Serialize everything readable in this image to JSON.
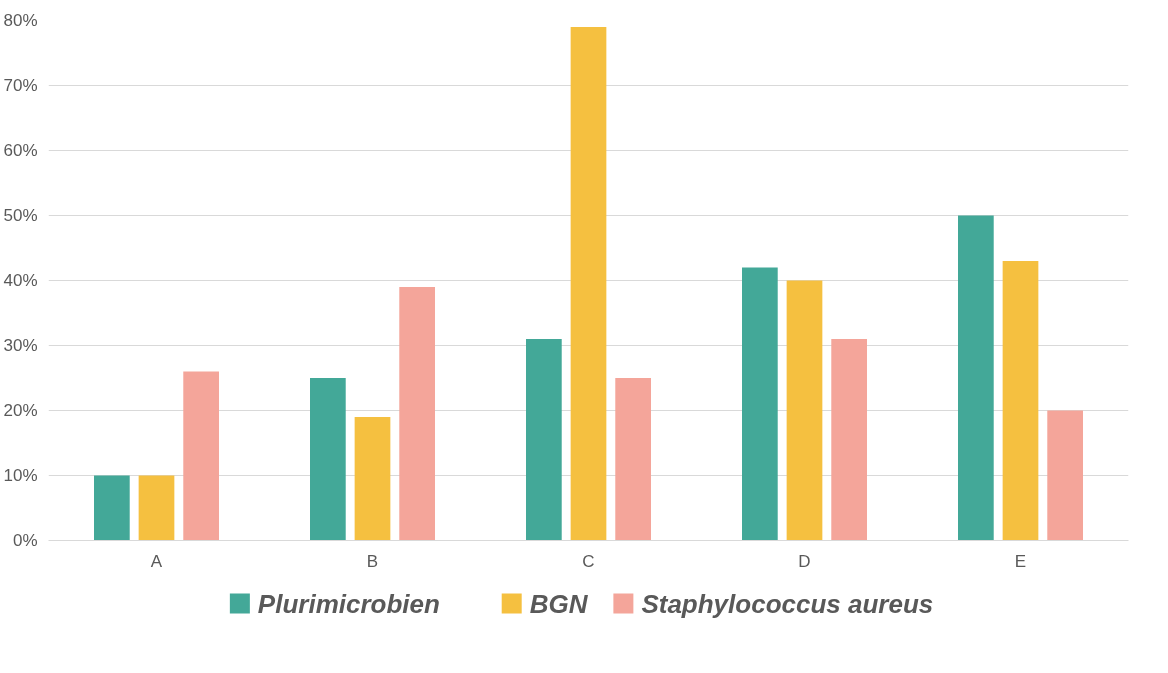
{
  "chart_data": {
    "type": "bar",
    "categories": [
      "A",
      "B",
      "C",
      "D",
      "E"
    ],
    "series": [
      {
        "name": "Plurimicrobien",
        "color": "#43a898",
        "values": [
          10,
          25,
          31,
          42,
          50
        ]
      },
      {
        "name": "BGN",
        "color": "#f5c040",
        "values": [
          10,
          19,
          79,
          40,
          43
        ]
      },
      {
        "name": "Staphylococcus aureus",
        "color": "#f4a59a",
        "values": [
          26,
          39,
          25,
          31,
          20
        ]
      }
    ],
    "ylim": [
      0,
      80
    ],
    "yticks": [
      {
        "value": 0,
        "label": "0%"
      },
      {
        "value": 10,
        "label": "10%"
      },
      {
        "value": 20,
        "label": "20%"
      },
      {
        "value": 30,
        "label": "30%"
      },
      {
        "value": 40,
        "label": "40%"
      },
      {
        "value": 50,
        "label": "50%"
      },
      {
        "value": 60,
        "label": "60%"
      },
      {
        "value": 70,
        "label": "70%"
      },
      {
        "value": 80,
        "label": "80%"
      }
    ],
    "grid": "y",
    "legend": "bottom"
  }
}
